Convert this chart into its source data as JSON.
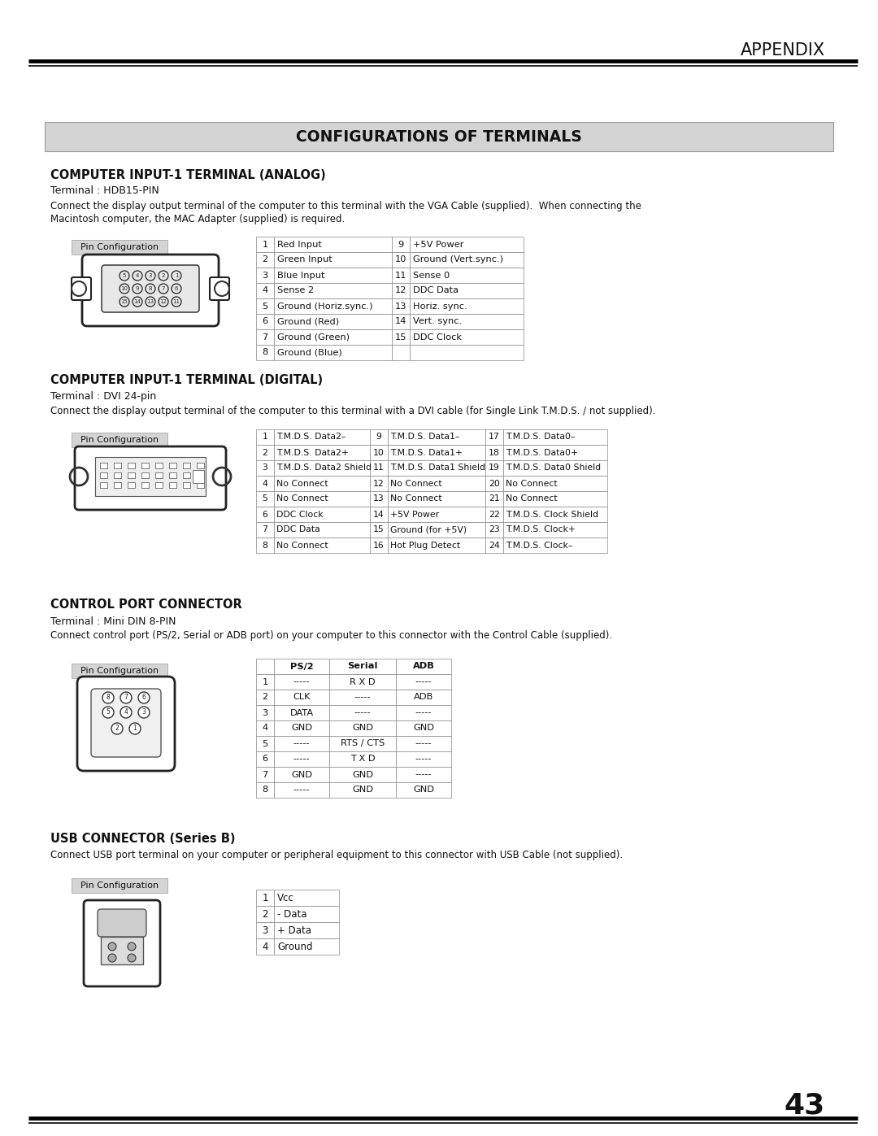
{
  "page_number": "43",
  "appendix_title": "APPENDIX",
  "main_title": "CONFIGURATIONS OF TERMINALS",
  "bg_color": "#ffffff",
  "title_bg": "#d4d4d4",
  "section1_title": "COMPUTER INPUT-1 TERMINAL (ANALOG)",
  "section1_sub": "Terminal : HDB15-PIN",
  "section1_desc1": "Connect the display output terminal of the computer to this terminal with the VGA Cable (supplied).  When connecting the",
  "section1_desc2": "Macintosh computer, the MAC Adapter (supplied) is required.",
  "analog_table": [
    [
      "1",
      "Red Input",
      "9",
      "+5V Power"
    ],
    [
      "2",
      "Green Input",
      "10",
      "Ground (Vert.sync.)"
    ],
    [
      "3",
      "Blue Input",
      "11",
      "Sense 0"
    ],
    [
      "4",
      "Sense 2",
      "12",
      "DDC Data"
    ],
    [
      "5",
      "Ground (Horiz.sync.)",
      "13",
      "Horiz. sync."
    ],
    [
      "6",
      "Ground (Red)",
      "14",
      "Vert. sync."
    ],
    [
      "7",
      "Ground (Green)",
      "15",
      "DDC Clock"
    ],
    [
      "8",
      "Ground (Blue)",
      "",
      ""
    ]
  ],
  "section2_title": "COMPUTER INPUT-1 TERMINAL (DIGITAL)",
  "section2_sub": "Terminal : DVI 24-pin",
  "section2_desc": "Connect the display output terminal of the computer to this terminal with a DVI cable (for Single Link T.M.D.S. / not supplied).",
  "digital_table": [
    [
      "1",
      "T.M.D.S. Data2–",
      "9",
      "T.M.D.S. Data1–",
      "17",
      "T.M.D.S. Data0–"
    ],
    [
      "2",
      "T.M.D.S. Data2+",
      "10",
      "T.M.D.S. Data1+",
      "18",
      "T.M.D.S. Data0+"
    ],
    [
      "3",
      "T.M.D.S. Data2 Shield",
      "11",
      "T.M.D.S. Data1 Shield",
      "19",
      "T.M.D.S. Data0 Shield"
    ],
    [
      "4",
      "No Connect",
      "12",
      "No Connect",
      "20",
      "No Connect"
    ],
    [
      "5",
      "No Connect",
      "13",
      "No Connect",
      "21",
      "No Connect"
    ],
    [
      "6",
      "DDC Clock",
      "14",
      "+5V Power",
      "22",
      "T.M.D.S. Clock Shield"
    ],
    [
      "7",
      "DDC Data",
      "15",
      "Ground (for +5V)",
      "23",
      "T.M.D.S. Clock+"
    ],
    [
      "8",
      "No Connect",
      "16",
      "Hot Plug Detect",
      "24",
      "T.M.D.S. Clock–"
    ]
  ],
  "section3_title": "CONTROL PORT CONNECTOR",
  "section3_sub": "Terminal : Mini DIN 8-PIN",
  "section3_desc": "Connect control port (PS/2, Serial or ADB port) on your computer to this connector with the Control Cable (supplied).",
  "control_table_header": [
    "",
    "PS/2",
    "Serial",
    "ADB"
  ],
  "control_table": [
    [
      "1",
      "-----",
      "R X D",
      "-----"
    ],
    [
      "2",
      "CLK",
      "-----",
      "ADB"
    ],
    [
      "3",
      "DATA",
      "-----",
      "-----"
    ],
    [
      "4",
      "GND",
      "GND",
      "GND"
    ],
    [
      "5",
      "-----",
      "RTS / CTS",
      "-----"
    ],
    [
      "6",
      "-----",
      "T X D",
      "-----"
    ],
    [
      "7",
      "GND",
      "GND",
      "-----"
    ],
    [
      "8",
      "-----",
      "GND",
      "GND"
    ]
  ],
  "section4_title": "USB CONNECTOR (Series B)",
  "section4_desc": "Connect USB port terminal on your computer or peripheral equipment to this connector with USB Cable (not supplied).",
  "usb_table": [
    [
      "1",
      "Vcc"
    ],
    [
      "2",
      "- Data"
    ],
    [
      "3",
      "+ Data"
    ],
    [
      "4",
      "Ground"
    ]
  ]
}
